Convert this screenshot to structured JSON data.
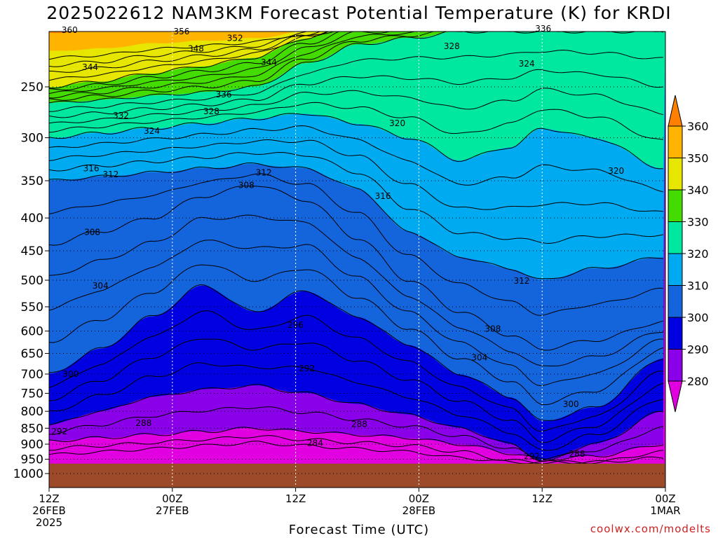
{
  "title": "2025022612 NAM3KM Forecast Potential Temperature (K) for KRDI",
  "watermark": "coolwx.com/modelts",
  "colors": {
    "ground": "#9c4a2a",
    "levels": [
      {
        "lo": 270,
        "hi": 280,
        "color": "#e000e0"
      },
      {
        "lo": 280,
        "hi": 290,
        "color": "#8a00e8"
      },
      {
        "lo": 290,
        "hi": 300,
        "color": "#0000e0"
      },
      {
        "lo": 300,
        "hi": 310,
        "color": "#1464dc"
      },
      {
        "lo": 310,
        "hi": 320,
        "color": "#00aaf0"
      },
      {
        "lo": 320,
        "hi": 330,
        "color": "#00e8a0"
      },
      {
        "lo": 330,
        "hi": 340,
        "color": "#44dc00"
      },
      {
        "lo": 340,
        "hi": 350,
        "color": "#e6e600"
      },
      {
        "lo": 350,
        "hi": 360,
        "color": "#ffb400"
      },
      {
        "lo": 360,
        "hi": 370,
        "color": "#ff8000"
      }
    ]
  },
  "chart_data": {
    "type": "heatmap",
    "title": "2025022612 NAM3KM Forecast Potential Temperature (K) for KRDI",
    "xlabel": "Forecast Time (UTC)",
    "ylabel": "",
    "x_ticks": [
      {
        "hour": 0,
        "lines": [
          "12Z",
          "26FEB",
          "2025"
        ]
      },
      {
        "hour": 12,
        "lines": [
          "00Z",
          "27FEB"
        ]
      },
      {
        "hour": 24,
        "lines": [
          "12Z"
        ]
      },
      {
        "hour": 36,
        "lines": [
          "00Z",
          "28FEB"
        ]
      },
      {
        "hour": 48,
        "lines": [
          "12Z"
        ]
      },
      {
        "hour": 60,
        "lines": [
          "00Z",
          "1MAR"
        ]
      }
    ],
    "xlim": [
      0,
      60
    ],
    "y_scale": "log-pressure",
    "ylim": [
      1000,
      200
    ],
    "y_ticks": [
      250,
      300,
      350,
      400,
      450,
      500,
      550,
      600,
      650,
      700,
      750,
      800,
      850,
      900,
      950,
      1000
    ],
    "surface_pressure_hpa": 965,
    "colorbar": {
      "ticks": [
        360,
        350,
        340,
        330,
        320,
        310,
        300,
        290,
        280
      ],
      "extend": "both"
    },
    "isentropes": [
      {
        "theta": 288,
        "pressure": [
          890,
          880,
          870,
          860,
          850,
          860,
          870,
          880,
          900,
          930,
          950,
          940,
          900
        ],
        "hours": [
          0,
          5,
          10,
          15,
          20,
          25,
          30,
          35,
          40,
          45,
          48,
          53,
          60
        ]
      },
      {
        "theta": 292,
        "pressure": [
          840,
          800,
          760,
          740,
          730,
          750,
          780,
          810,
          850,
          900,
          955,
          900,
          800
        ],
        "hours": [
          0,
          5,
          10,
          15,
          20,
          25,
          30,
          35,
          40,
          45,
          48,
          53,
          60
        ]
      },
      {
        "theta": 300,
        "pressure": [
          700,
          640,
          570,
          510,
          560,
          520,
          570,
          630,
          700,
          760,
          830,
          790,
          660
        ],
        "hours": [
          0,
          5,
          10,
          15,
          20,
          25,
          30,
          35,
          40,
          45,
          48,
          53,
          60
        ]
      },
      {
        "theta": 308,
        "pressure": [
          440,
          420,
          400,
          370,
          355,
          375,
          430,
          500,
          560,
          610,
          640,
          620,
          580
        ],
        "hours": [
          0,
          5,
          10,
          15,
          20,
          25,
          30,
          35,
          40,
          45,
          48,
          53,
          60
        ]
      },
      {
        "theta": 312,
        "pressure": [
          350,
          345,
          340,
          335,
          330,
          335,
          360,
          420,
          460,
          480,
          500,
          480,
          460
        ],
        "hours": [
          0,
          5,
          10,
          15,
          20,
          25,
          30,
          35,
          40,
          45,
          48,
          53,
          60
        ]
      },
      {
        "theta": 320,
        "pressure": [
          300,
          295,
          290,
          285,
          280,
          275,
          285,
          300,
          325,
          310,
          290,
          300,
          335
        ],
        "hours": [
          0,
          5,
          10,
          15,
          20,
          25,
          30,
          35,
          40,
          45,
          48,
          53,
          60
        ]
      },
      {
        "theta": 330,
        "pressure": [
          265,
          262,
          258,
          255,
          250,
          230,
          215,
          210,
          205,
          205,
          205,
          205,
          205
        ],
        "hours": [
          0,
          5,
          10,
          15,
          20,
          25,
          30,
          35,
          40,
          45,
          48,
          53,
          60
        ]
      },
      {
        "theta": 340,
        "pressure": [
          250,
          245,
          238,
          232,
          225,
          210,
          200,
          200,
          200,
          200,
          200,
          200,
          200
        ],
        "hours": [
          0,
          5,
          10,
          15,
          20,
          25,
          30,
          35,
          40,
          45,
          48,
          53,
          60
        ]
      },
      {
        "theta": 350,
        "pressure": [
          220,
          218,
          214,
          212,
          210,
          205,
          200,
          200,
          200,
          200,
          200,
          200,
          200
        ],
        "hours": [
          0,
          5,
          10,
          15,
          20,
          25,
          30,
          35,
          40,
          45,
          48,
          53,
          60
        ]
      }
    ],
    "contour_labels": [
      {
        "text": "360",
        "hour": 2.0,
        "hpa": 204
      },
      {
        "text": "356",
        "hour": 12.9,
        "hpa": 205
      },
      {
        "text": "352",
        "hour": 18.1,
        "hpa": 210
      },
      {
        "text": "348",
        "hour": 14.3,
        "hpa": 218
      },
      {
        "text": "344",
        "hour": 4.0,
        "hpa": 233
      },
      {
        "text": "344",
        "hour": 21.4,
        "hpa": 229
      },
      {
        "text": "336",
        "hour": 17.0,
        "hpa": 257
      },
      {
        "text": "336",
        "hour": 48.1,
        "hpa": 203
      },
      {
        "text": "328",
        "hour": 39.2,
        "hpa": 216
      },
      {
        "text": "324",
        "hour": 46.5,
        "hpa": 230
      },
      {
        "text": "332",
        "hour": 7.0,
        "hpa": 277
      },
      {
        "text": "328",
        "hour": 15.8,
        "hpa": 273
      },
      {
        "text": "324",
        "hour": 10.0,
        "hpa": 293
      },
      {
        "text": "320",
        "hour": 33.9,
        "hpa": 285
      },
      {
        "text": "320",
        "hour": 55.2,
        "hpa": 338
      },
      {
        "text": "316",
        "hour": 4.1,
        "hpa": 335
      },
      {
        "text": "312",
        "hour": 6.0,
        "hpa": 342
      },
      {
        "text": "312",
        "hour": 20.9,
        "hpa": 340
      },
      {
        "text": "308",
        "hour": 19.2,
        "hpa": 356
      },
      {
        "text": "316",
        "hour": 32.5,
        "hpa": 370
      },
      {
        "text": "308",
        "hour": 4.2,
        "hpa": 421
      },
      {
        "text": "304",
        "hour": 5.0,
        "hpa": 510
      },
      {
        "text": "312",
        "hour": 46.0,
        "hpa": 501
      },
      {
        "text": "296",
        "hour": 24.0,
        "hpa": 587
      },
      {
        "text": "308",
        "hour": 43.2,
        "hpa": 595
      },
      {
        "text": "304",
        "hour": 41.9,
        "hpa": 660
      },
      {
        "text": "292",
        "hour": 25.1,
        "hpa": 686
      },
      {
        "text": "300",
        "hour": 2.1,
        "hpa": 700
      },
      {
        "text": "300",
        "hour": 50.8,
        "hpa": 780
      },
      {
        "text": "288",
        "hour": 9.2,
        "hpa": 835
      },
      {
        "text": "288",
        "hour": 30.2,
        "hpa": 838
      },
      {
        "text": "292",
        "hour": 1.0,
        "hpa": 860
      },
      {
        "text": "284",
        "hour": 25.9,
        "hpa": 897
      },
      {
        "text": "292",
        "hour": 47.0,
        "hpa": 940
      },
      {
        "text": "288",
        "hour": 51.4,
        "hpa": 932
      }
    ]
  }
}
